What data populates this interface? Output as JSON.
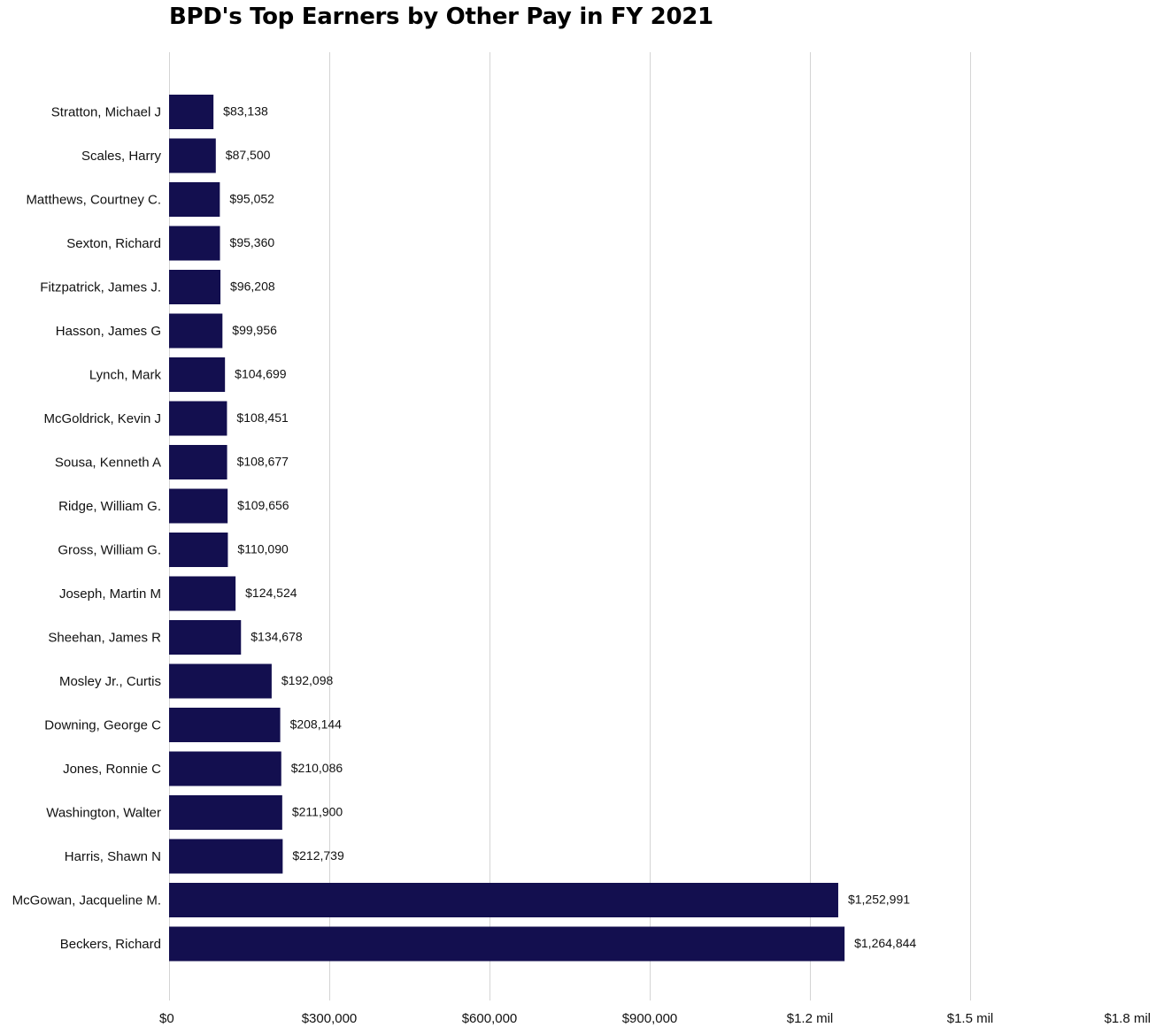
{
  "chart_data": {
    "type": "bar",
    "orientation": "horizontal",
    "title": "BPD's Top Earners by Other Pay in FY 2021",
    "xlabel": "",
    "ylabel": "",
    "xlim": [
      0,
      1800000
    ],
    "grid": true,
    "bar_color": "#130f4f",
    "categories": [
      "Stratton, Michael J",
      "Scales, Harry",
      "Matthews, Courtney C.",
      "Sexton, Richard",
      "Fitzpatrick, James J.",
      "Hasson, James G",
      "Lynch, Mark",
      "McGoldrick, Kevin J",
      "Sousa, Kenneth A",
      "Ridge, William G.",
      "Gross, William G.",
      "Joseph, Martin M",
      "Sheehan, James R",
      "Mosley Jr., Curtis",
      "Downing, George C",
      "Jones, Ronnie C",
      "Washington, Walter",
      "Harris, Shawn N",
      "McGowan, Jacqueline M.",
      "Beckers, Richard"
    ],
    "values": [
      83138,
      87500,
      95052,
      95360,
      96208,
      99956,
      104699,
      108451,
      108677,
      109656,
      110090,
      124524,
      134678,
      192098,
      208144,
      210086,
      211900,
      212739,
      1252991,
      1264844
    ],
    "value_labels": [
      "$83,138",
      "$87,500",
      "$95,052",
      "$95,360",
      "$96,208",
      "$99,956",
      "$104,699",
      "$108,451",
      "$108,677",
      "$109,656",
      "$110,090",
      "$124,524",
      "$134,678",
      "$192,098",
      "$208,144",
      "$210,086",
      "$211,900",
      "$212,739",
      "$1,252,991",
      "$1,264,844"
    ],
    "x_ticks": [
      0,
      300000,
      600000,
      900000,
      1200000,
      1500000,
      1800000
    ],
    "x_tick_labels": [
      "$0",
      "$300,000",
      "$600,000",
      "$900,000",
      "$1.2 mil",
      "$1.5 mil",
      "$1.8 mil"
    ]
  }
}
